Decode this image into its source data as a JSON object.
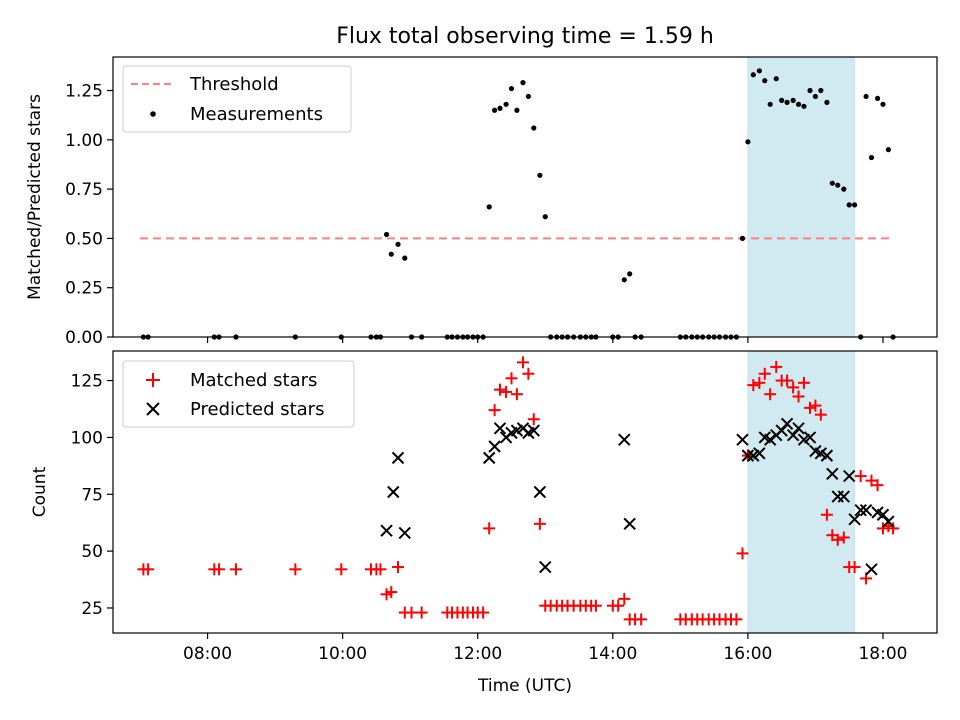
{
  "chart_data": [
    {
      "type": "scatter",
      "title": "Flux total observing time = 1.59 h",
      "xlabel": "",
      "ylabel": "Matched/Predicted stars",
      "xlim": [
        6.6,
        18.8
      ],
      "ylim": [
        0,
        1.42
      ],
      "yticks": [
        0,
        0.25,
        0.5,
        0.75,
        1.0,
        1.25
      ],
      "ytick_labels": [
        "0.00",
        "0.25",
        "0.50",
        "0.75",
        "1.00",
        "1.25"
      ],
      "xticks": [
        8,
        10,
        12,
        14,
        16,
        18
      ],
      "shaded_region": {
        "from": 16.0,
        "to": 17.58,
        "color": "#add8e6"
      },
      "legend_position": "upper left",
      "series": [
        {
          "name": "Threshold",
          "kind": "dashed-line",
          "color": "#ff7f7f",
          "x": [
            7.0,
            18.15
          ],
          "y": [
            0.5,
            0.5
          ]
        },
        {
          "name": "Measurements",
          "kind": "dot",
          "color": "#000000",
          "x": [
            7.05,
            7.12,
            8.1,
            8.17,
            8.42,
            9.3,
            9.98,
            10.42,
            10.5,
            10.56,
            10.65,
            10.72,
            10.82,
            10.92,
            11.02,
            11.17,
            11.55,
            11.62,
            11.7,
            11.78,
            11.85,
            11.93,
            12.0,
            12.08,
            12.17,
            12.25,
            12.33,
            12.42,
            12.5,
            12.58,
            12.67,
            12.75,
            12.83,
            12.92,
            13.0,
            13.08,
            13.17,
            13.25,
            13.33,
            13.42,
            13.52,
            13.6,
            13.68,
            13.75,
            14.0,
            14.08,
            14.17,
            14.25,
            14.33,
            14.42,
            15.0,
            15.08,
            15.17,
            15.25,
            15.33,
            15.42,
            15.5,
            15.58,
            15.67,
            15.75,
            15.83,
            15.92,
            16.0,
            16.08,
            16.17,
            16.25,
            16.33,
            16.42,
            16.5,
            16.58,
            16.67,
            16.75,
            16.83,
            16.92,
            17.0,
            17.08,
            17.17,
            17.25,
            17.33,
            17.42,
            17.5,
            17.58,
            17.67,
            17.75,
            17.83,
            17.92,
            18.0,
            18.08,
            18.15
          ],
          "y": [
            0,
            0,
            0,
            0,
            0,
            0,
            0,
            0,
            0,
            0,
            0.52,
            0.42,
            0.47,
            0.4,
            0,
            0,
            0,
            0,
            0,
            0,
            0,
            0,
            0,
            0,
            0.66,
            1.15,
            1.16,
            1.18,
            1.26,
            1.15,
            1.29,
            1.22,
            1.06,
            0.82,
            0.61,
            0,
            0,
            0,
            0,
            0,
            0,
            0,
            0,
            0,
            0,
            0,
            0.29,
            0.32,
            0,
            0,
            0,
            0,
            0,
            0,
            0,
            0,
            0,
            0,
            0,
            0,
            0,
            0.5,
            0.99,
            1.33,
            1.35,
            1.3,
            1.18,
            1.31,
            1.2,
            1.19,
            1.2,
            1.18,
            1.17,
            1.25,
            1.22,
            1.25,
            1.19,
            0.78,
            0.77,
            0.75,
            0.67,
            0.67,
            0,
            1.22,
            0.91,
            1.21,
            1.18,
            0.95,
            0
          ]
        }
      ]
    },
    {
      "type": "scatter",
      "title": "",
      "xlabel": "Time (UTC)",
      "ylabel": "Count",
      "xlim": [
        6.6,
        18.8
      ],
      "ylim": [
        14,
        138
      ],
      "yticks": [
        25,
        50,
        75,
        100,
        125
      ],
      "ytick_labels": [
        "25",
        "50",
        "75",
        "100",
        "125"
      ],
      "xticks": [
        8,
        10,
        12,
        14,
        16,
        18
      ],
      "xtick_labels": [
        "08:00",
        "10:00",
        "12:00",
        "14:00",
        "16:00",
        "18:00"
      ],
      "shaded_region": {
        "from": 16.0,
        "to": 17.58,
        "color": "#add8e6"
      },
      "legend_position": "upper left",
      "series": [
        {
          "name": "Matched stars",
          "kind": "plus",
          "color": "#ff0000",
          "x": [
            7.05,
            7.12,
            8.1,
            8.17,
            8.42,
            9.3,
            9.98,
            10.42,
            10.5,
            10.56,
            10.65,
            10.72,
            10.82,
            10.92,
            11.02,
            11.17,
            11.55,
            11.62,
            11.7,
            11.78,
            11.85,
            11.93,
            12.0,
            12.08,
            12.17,
            12.25,
            12.33,
            12.42,
            12.5,
            12.58,
            12.67,
            12.75,
            12.83,
            12.92,
            13.0,
            13.08,
            13.17,
            13.25,
            13.33,
            13.42,
            13.52,
            13.6,
            13.68,
            13.75,
            14.0,
            14.08,
            14.17,
            14.25,
            14.33,
            14.42,
            15.0,
            15.08,
            15.17,
            15.25,
            15.33,
            15.42,
            15.5,
            15.58,
            15.67,
            15.75,
            15.83,
            15.92,
            16.0,
            16.08,
            16.17,
            16.25,
            16.33,
            16.42,
            16.5,
            16.58,
            16.67,
            16.75,
            16.83,
            16.92,
            17.0,
            17.08,
            17.17,
            17.25,
            17.33,
            17.42,
            17.5,
            17.58,
            17.67,
            17.75,
            17.83,
            17.92,
            18.0,
            18.08,
            18.15
          ],
          "y": [
            42,
            42,
            42,
            42,
            42,
            42,
            42,
            42,
            42,
            42,
            31,
            32,
            43,
            23,
            23,
            23,
            23,
            23,
            23,
            23,
            23,
            23,
            23,
            23,
            60,
            112,
            121,
            120,
            126,
            119,
            133,
            128,
            108,
            62,
            26,
            26,
            26,
            26,
            26,
            26,
            26,
            26,
            26,
            26,
            26,
            26,
            29,
            20,
            20,
            20,
            20,
            20,
            20,
            20,
            20,
            20,
            20,
            20,
            20,
            20,
            20,
            49,
            92,
            123,
            124,
            128,
            119,
            131,
            125,
            125,
            122,
            118,
            124,
            113,
            114,
            110,
            66,
            57,
            55,
            56,
            43,
            43,
            83,
            38,
            81,
            79,
            60,
            61,
            60
          ]
        },
        {
          "name": "Predicted stars",
          "kind": "x",
          "color": "#000000",
          "x": [
            10.65,
            10.75,
            10.82,
            10.92,
            12.17,
            12.25,
            12.33,
            12.42,
            12.5,
            12.58,
            12.67,
            12.75,
            12.83,
            12.92,
            13.0,
            14.17,
            14.25,
            15.92,
            16.0,
            16.08,
            16.17,
            16.25,
            16.33,
            16.42,
            16.5,
            16.58,
            16.67,
            16.75,
            16.83,
            16.92,
            17.0,
            17.08,
            17.17,
            17.25,
            17.33,
            17.42,
            17.5,
            17.58,
            17.67,
            17.75,
            17.83,
            17.92,
            18.0,
            18.08
          ],
          "y": [
            59,
            76,
            91,
            58,
            91,
            96,
            104,
            100,
            102,
            103,
            104,
            102,
            103,
            76,
            43,
            99,
            62,
            99,
            92,
            92,
            93,
            100,
            99,
            101,
            103,
            106,
            101,
            104,
            99,
            100,
            94,
            93,
            92,
            84,
            74,
            74,
            83,
            64,
            68,
            68,
            42,
            67,
            66,
            63
          ]
        }
      ]
    }
  ]
}
